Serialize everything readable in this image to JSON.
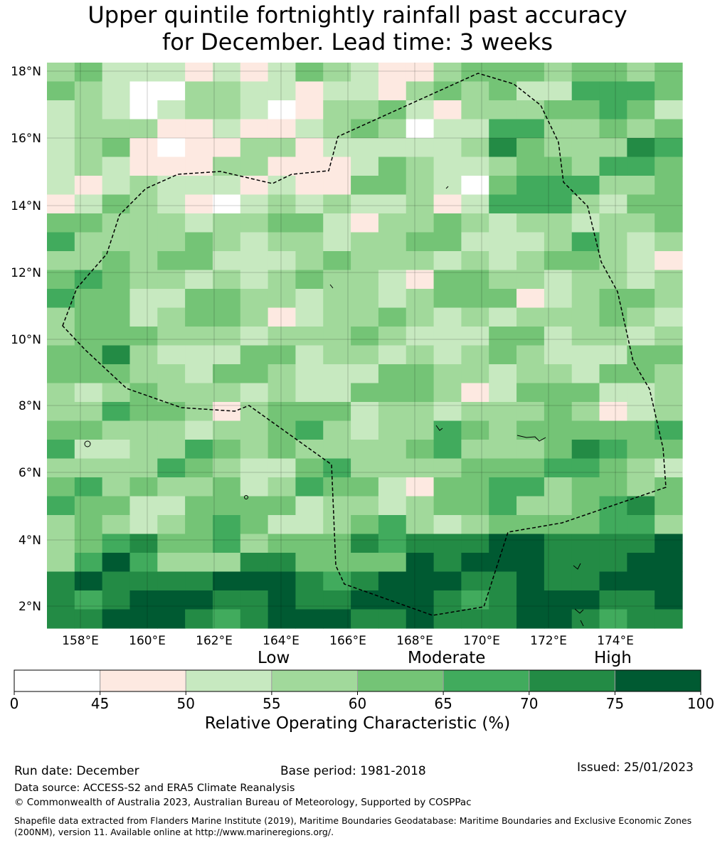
{
  "title": {
    "line1": "Upper quintile fortnightly rainfall past accuracy",
    "line2": "for December. Lead time: 3 weeks"
  },
  "map": {
    "lat_labels": [
      "18°N",
      "16°N",
      "14°N",
      "12°N",
      "10°N",
      "8°N",
      "6°N",
      "4°N",
      "2°N"
    ],
    "lon_labels": [
      "158°E",
      "160°E",
      "162°E",
      "164°E",
      "166°E",
      "168°E",
      "170°E",
      "172°E",
      "174°E"
    ],
    "boundary_line": "EEZ boundary (dashed)"
  },
  "colorbar": {
    "category_labels": [
      "Low",
      "Moderate",
      "High"
    ],
    "bins": [
      {
        "from": 0,
        "to": 45,
        "color": "#ffffff"
      },
      {
        "from": 45,
        "to": 50,
        "color": "#fde9e1"
      },
      {
        "from": 50,
        "to": 55,
        "color": "#c7e9c0"
      },
      {
        "from": 55,
        "to": 60,
        "color": "#a1d99b"
      },
      {
        "from": 60,
        "to": 65,
        "color": "#74c476"
      },
      {
        "from": 65,
        "to": 70,
        "color": "#41ab5d"
      },
      {
        "from": 70,
        "to": 75,
        "color": "#238b45"
      },
      {
        "from": 75,
        "to": 100,
        "color": "#005a32"
      }
    ],
    "tick_labels": [
      "0",
      "45",
      "50",
      "55",
      "60",
      "65",
      "70",
      "75",
      "100"
    ],
    "title": "Relative Operating Characteristic (%)"
  },
  "footer": {
    "run_date": "Run date: December",
    "base_period": "Base period: 1981-2018",
    "issued": "Issued: 25/01/2023",
    "data_source": "Data source: ACCESS-S2 and ERA5 Climate Reanalysis",
    "copyright": "© Commonwealth of Australia 2023, Australian Bureau of Meteorology, Supported by COSPPac",
    "shapefile": "Shapefile data extracted from Flanders Marine Institute (2019), Maritime Boundaries Geodatabase: Maritime Boundaries and Exclusive Economic Zones (200NM), version 11. Available online at http://www.marineregions.org/."
  }
}
